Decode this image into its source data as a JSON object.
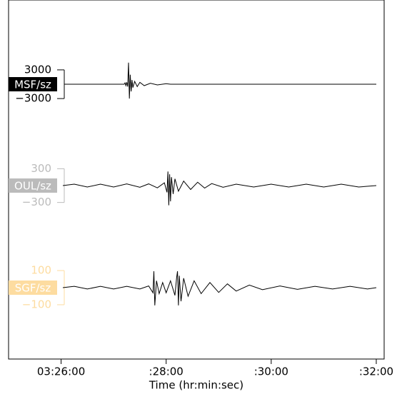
{
  "chart_data": {
    "type": "seismogram",
    "x_label": "Time (hr:min:sec)",
    "xlim": [
      12300,
      12729
    ],
    "xticks": [
      {
        "value": 12360,
        "label": "03:26:00"
      },
      {
        "value": 12480,
        "label": ":28:00"
      },
      {
        "value": 12600,
        "label": ":30:00"
      },
      {
        "value": 12720,
        "label": ":32:00"
      }
    ],
    "series": [
      {
        "name": "MSF/sz",
        "color": "#000000",
        "label_color": "#000000",
        "trace_color": "#000000",
        "ylim": [
          -10000,
          10000
        ],
        "yticks": [
          3000,
          {
            "value": -3000,
            "label": "−3000"
          }
        ],
        "x": [
          12364,
          12432,
          12433,
          12434,
          12435,
          12436,
          12437,
          12438,
          12439,
          12440,
          12441,
          12442,
          12444,
          12447,
          12450,
          12455,
          12462,
          12470,
          12480,
          12485,
          12720
        ],
        "values": [
          0,
          0,
          300,
          -300,
          400,
          -500,
          4500,
          -3000,
          2000,
          -1500,
          900,
          -700,
          600,
          -500,
          400,
          -300,
          200,
          -150,
          100,
          0,
          0
        ]
      },
      {
        "name": "OUL/sz",
        "color": "#bbbbbb",
        "label_color": "#bbbbbb",
        "trace_color": "#000000",
        "ylim": [
          -850,
          850
        ],
        "yticks": [
          300,
          {
            "value": -300,
            "label": "−300"
          }
        ],
        "x": [
          12362,
          12375,
          12390,
          12405,
          12420,
          12435,
          12450,
          12460,
          12470,
          12478,
          12481,
          12482,
          12483,
          12484,
          12485,
          12486,
          12488,
          12490,
          12494,
          12500,
          12508,
          12516,
          12524,
          12532,
          12545,
          12560,
          12580,
          12600,
          12620,
          12640,
          12660,
          12680,
          12700,
          12720
        ],
        "values": [
          0,
          25,
          -25,
          25,
          -25,
          30,
          -30,
          30,
          -40,
          50,
          -120,
          250,
          -350,
          200,
          -280,
          150,
          -150,
          120,
          -100,
          80,
          -70,
          60,
          -45,
          35,
          -30,
          25,
          -25,
          25,
          -25,
          25,
          -25,
          25,
          -25,
          0
        ]
      },
      {
        "name": "SGF/sz",
        "color": "#fddca0",
        "label_color": "#fddca0",
        "trace_color": "#000000",
        "ylim": [
          -280,
          280
        ],
        "yticks": [
          100,
          {
            "value": -100,
            "label": "−100"
          }
        ],
        "x": [
          12362,
          12375,
          12390,
          12405,
          12420,
          12435,
          12450,
          12460,
          12465,
          12466,
          12467,
          12469,
          12472,
          12476,
          12480,
          12485,
          12490,
          12492,
          12493,
          12494,
          12495,
          12497,
          12500,
          12505,
          12512,
          12520,
          12530,
          12540,
          12550,
          12560,
          12575,
          12590,
          12610,
          12630,
          12650,
          12670,
          12690,
          12710,
          12720
        ],
        "values": [
          0,
          8,
          -8,
          8,
          -8,
          8,
          -8,
          10,
          -30,
          96,
          -104,
          40,
          -35,
          30,
          -30,
          40,
          -45,
          60,
          96,
          -104,
          70,
          -80,
          55,
          -50,
          40,
          -35,
          30,
          -28,
          22,
          -20,
          15,
          -12,
          10,
          -10,
          8,
          -8,
          8,
          -8,
          0
        ]
      }
    ]
  }
}
